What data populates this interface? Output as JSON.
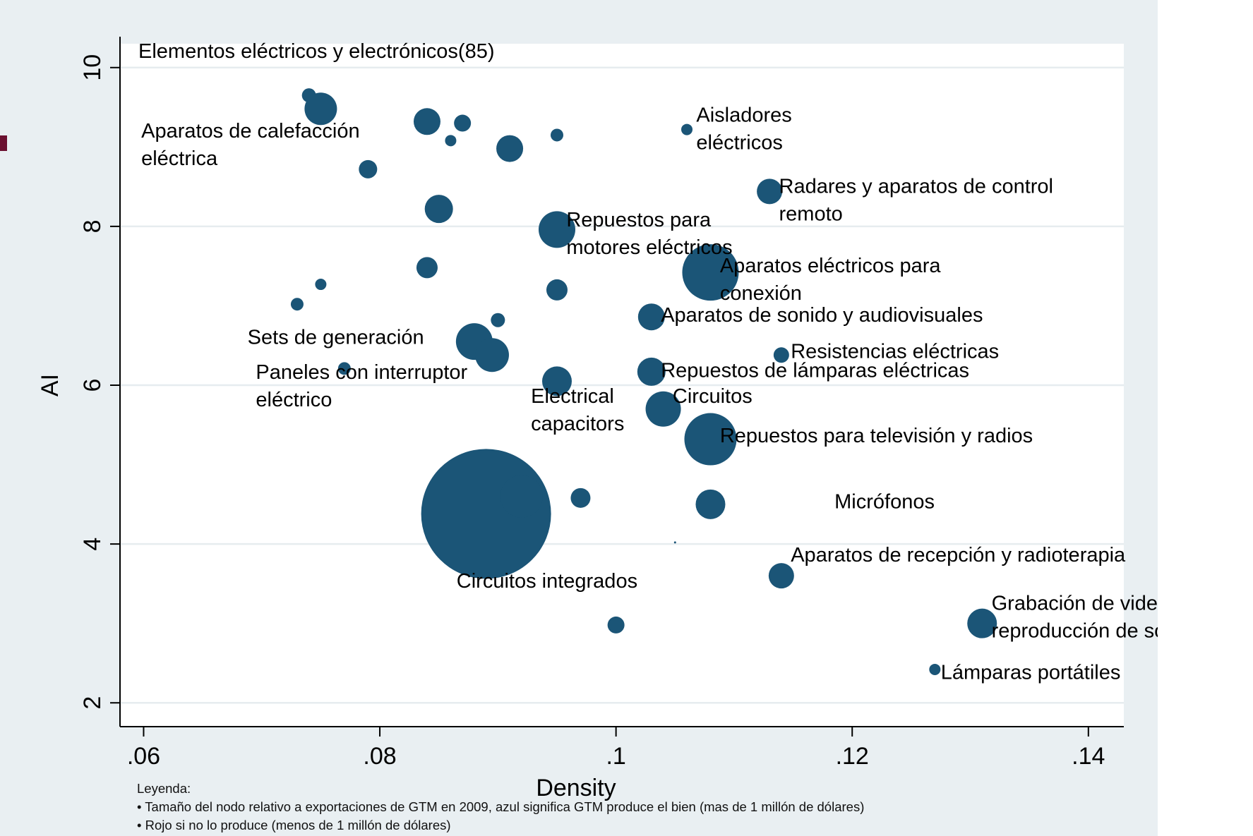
{
  "chart_data": {
    "type": "scatter",
    "title": "Elementos eléctricos y electrónicos(85)",
    "xlabel": "Density",
    "ylabel": "AI",
    "xlim": [
      0.058,
      0.143
    ],
    "ylim": [
      1.7,
      10.3
    ],
    "xticks": [
      0.06,
      0.08,
      0.1,
      0.12,
      0.14
    ],
    "xtick_labels": [
      ".06",
      ".08",
      ".1",
      ".12",
      ".14"
    ],
    "yticks": [
      2,
      4,
      6,
      8,
      10
    ],
    "ytick_labels": [
      "2",
      "4",
      "6",
      "8",
      "10"
    ],
    "grid": "horizontal",
    "bubble_color": "#1b5577",
    "points": [
      {
        "x": 0.074,
        "y": 9.65,
        "size": 10
      },
      {
        "x": 0.075,
        "y": 9.48,
        "size": 23
      },
      {
        "x": 0.084,
        "y": 9.32,
        "size": 19
      },
      {
        "x": 0.087,
        "y": 9.3,
        "size": 12
      },
      {
        "x": 0.086,
        "y": 9.08,
        "size": 8
      },
      {
        "x": 0.095,
        "y": 9.15,
        "size": 9
      },
      {
        "x": 0.091,
        "y": 8.98,
        "size": 19
      },
      {
        "x": 0.079,
        "y": 8.72,
        "size": 13
      },
      {
        "x": 0.085,
        "y": 8.22,
        "size": 20
      },
      {
        "x": 0.095,
        "y": 7.96,
        "size": 26
      },
      {
        "x": 0.084,
        "y": 7.48,
        "size": 15
      },
      {
        "x": 0.075,
        "y": 7.27,
        "size": 8
      },
      {
        "x": 0.095,
        "y": 7.2,
        "size": 15
      },
      {
        "x": 0.073,
        "y": 7.02,
        "size": 9
      },
      {
        "x": 0.09,
        "y": 6.82,
        "size": 10
      },
      {
        "x": 0.088,
        "y": 6.55,
        "size": 26
      },
      {
        "x": 0.0895,
        "y": 6.38,
        "size": 24
      },
      {
        "x": 0.077,
        "y": 6.21,
        "size": 9
      },
      {
        "x": 0.095,
        "y": 6.05,
        "size": 21
      },
      {
        "x": 0.106,
        "y": 9.22,
        "size": 8
      },
      {
        "x": 0.113,
        "y": 8.44,
        "size": 18
      },
      {
        "x": 0.108,
        "y": 7.42,
        "size": 40
      },
      {
        "x": 0.103,
        "y": 6.86,
        "size": 19
      },
      {
        "x": 0.114,
        "y": 6.38,
        "size": 11
      },
      {
        "x": 0.103,
        "y": 6.17,
        "size": 20
      },
      {
        "x": 0.104,
        "y": 5.7,
        "size": 25
      },
      {
        "x": 0.108,
        "y": 5.32,
        "size": 37
      },
      {
        "x": 0.089,
        "y": 4.38,
        "size": 92
      },
      {
        "x": 0.092,
        "y": 4.6,
        "size": 30
      },
      {
        "x": 0.097,
        "y": 4.58,
        "size": 14
      },
      {
        "x": 0.108,
        "y": 4.5,
        "size": 21
      },
      {
        "x": 0.114,
        "y": 3.6,
        "size": 18
      },
      {
        "x": 0.1,
        "y": 2.98,
        "size": 12
      },
      {
        "x": 0.131,
        "y": 3.0,
        "size": 21
      },
      {
        "x": 0.127,
        "y": 2.42,
        "size": 8
      },
      {
        "x": 0.105,
        "y": 4.02,
        "size": 1.5
      }
    ],
    "annotations": [
      {
        "lines": [
          "Aparatos de calefacción",
          "eléctrica"
        ],
        "x": 0.0598,
        "y": 9.12
      },
      {
        "lines": [
          "Aisladores",
          "eléctricos"
        ],
        "x": 0.1068,
        "y": 9.32
      },
      {
        "lines": [
          "Radares y aparatos de control",
          "remoto"
        ],
        "x": 0.1138,
        "y": 8.42
      },
      {
        "lines": [
          "Repuestos para",
          "motores eléctricos"
        ],
        "x": 0.0958,
        "y": 8.0
      },
      {
        "lines": [
          "Aparatos eléctricos para",
          "conexión"
        ],
        "x": 0.1088,
        "y": 7.42
      },
      {
        "lines": [
          "Aparatos de sonido y audiovisuales"
        ],
        "x": 0.1038,
        "y": 6.8
      },
      {
        "lines": [
          "Sets de generación"
        ],
        "x": 0.0688,
        "y": 6.52
      },
      {
        "lines": [
          "Resistencias eléctricas"
        ],
        "x": 0.1148,
        "y": 6.34
      },
      {
        "lines": [
          "Paneles con interruptor",
          "eléctrico"
        ],
        "x": 0.0695,
        "y": 6.08
      },
      {
        "lines": [
          "Repuestos de lámparas eléctricas"
        ],
        "x": 0.1038,
        "y": 6.1
      },
      {
        "lines": [
          "Electrical",
          "capacitors"
        ],
        "x": 0.0928,
        "y": 5.78
      },
      {
        "lines": [
          "Circuitos"
        ],
        "x": 0.1048,
        "y": 5.78
      },
      {
        "lines": [
          "Repuestos para televisión y radios"
        ],
        "x": 0.1088,
        "y": 5.28
      },
      {
        "lines": [
          "Micrófonos"
        ],
        "x": 0.1185,
        "y": 4.45
      },
      {
        "lines": [
          "Aparatos de recepción y radioterapia"
        ],
        "x": 0.1148,
        "y": 3.78
      },
      {
        "lines": [
          "Circuitos integrados"
        ],
        "x": 0.0865,
        "y": 3.45
      },
      {
        "lines": [
          "Grabación de video y",
          "reproducción de sonido"
        ],
        "x": 0.1318,
        "y": 3.17
      },
      {
        "lines": [
          "Lámparas portátiles"
        ],
        "x": 0.1275,
        "y": 2.3
      }
    ]
  },
  "legend": {
    "title": "Leyenda:",
    "line1": "•  Tamaño del nodo relativo a exportaciones de GTM en 2009, azul significa GTM produce el bien (mas de 1 millón de dólares)",
    "line2": "• Rojo si no lo produce (menos de 1 millón de dólares)"
  }
}
